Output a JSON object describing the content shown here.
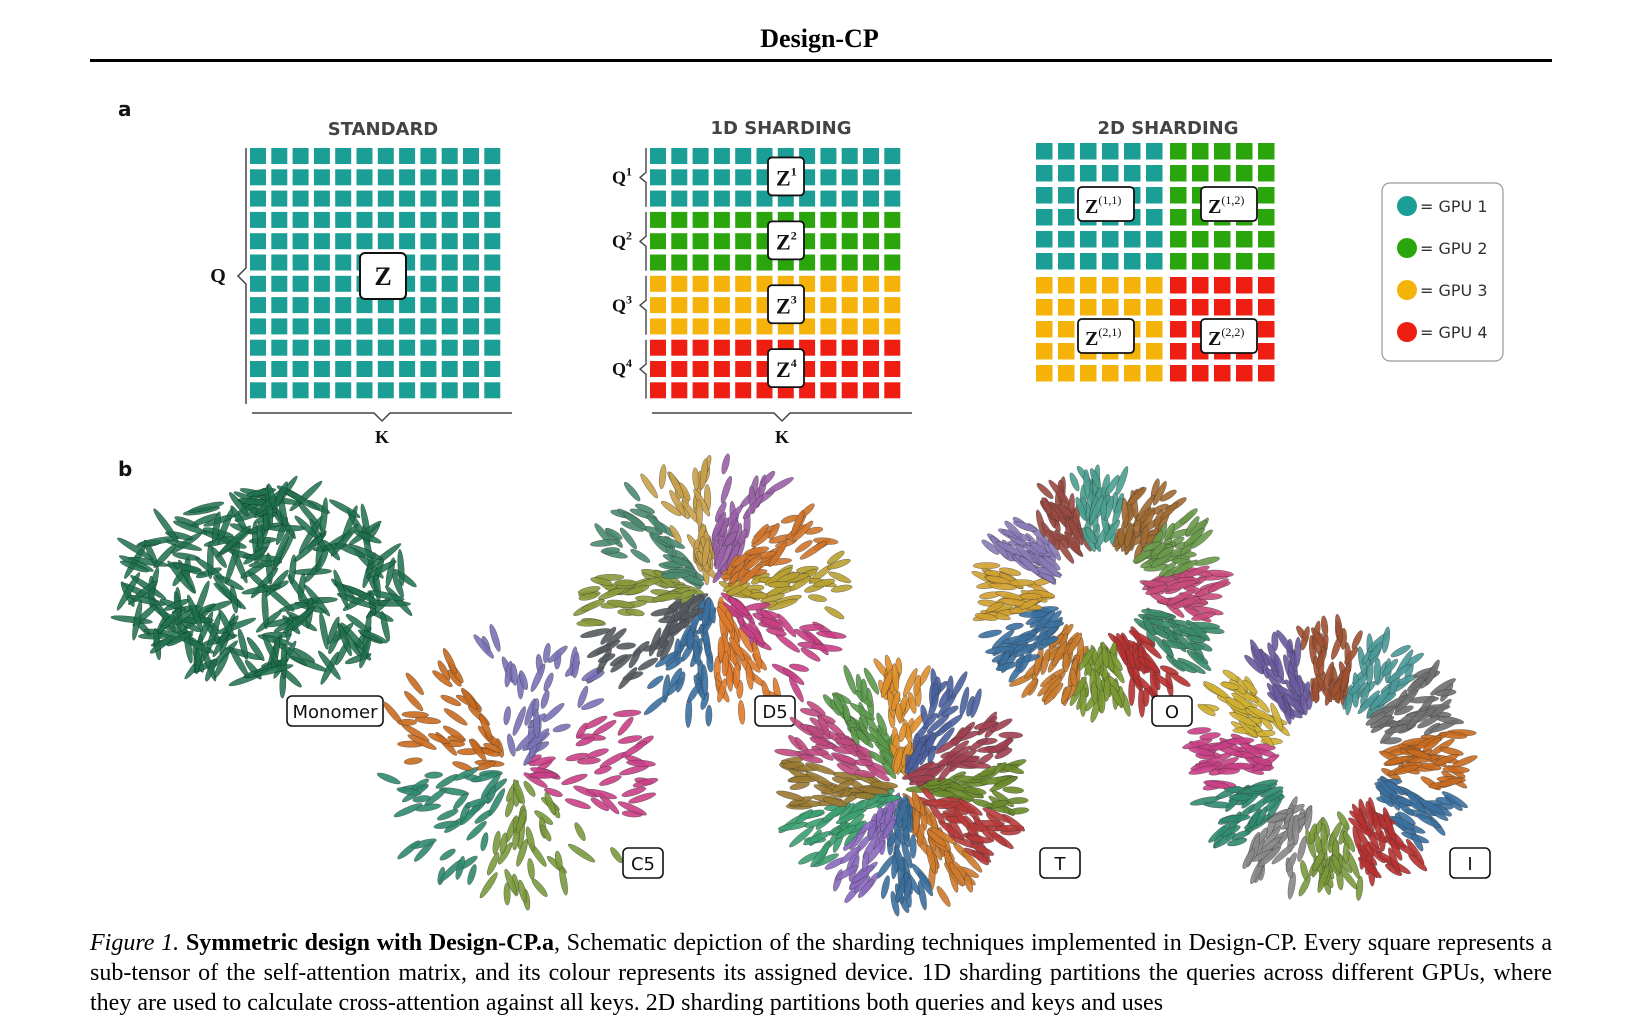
{
  "header": {
    "title": "Design-CP"
  },
  "panel_a": {
    "label": "a",
    "titles": {
      "standard": "STANDARD",
      "sharding_1d": "1D SHARDING",
      "sharding_2d": "2D SHARDING"
    },
    "standard": {
      "q_label": "Q",
      "k_label": "K",
      "z_label": "Z"
    },
    "sharding_1d": {
      "k_label": "K",
      "rows": [
        {
          "q_base": "Q",
          "q_sup": "1",
          "z_base": "Z",
          "z_sup": "1",
          "gpu": 1
        },
        {
          "q_base": "Q",
          "q_sup": "2",
          "z_base": "Z",
          "z_sup": "2",
          "gpu": 2
        },
        {
          "q_base": "Q",
          "q_sup": "3",
          "z_base": "Z",
          "z_sup": "3",
          "gpu": 3
        },
        {
          "q_base": "Q",
          "q_sup": "4",
          "z_base": "Z",
          "z_sup": "4",
          "gpu": 4
        }
      ]
    },
    "sharding_2d": {
      "blocks": [
        {
          "z_base": "Z",
          "z_sup": "(1,1)",
          "gpu": 1
        },
        {
          "z_base": "Z",
          "z_sup": "(1,2)",
          "gpu": 2
        },
        {
          "z_base": "Z",
          "z_sup": "(2,1)",
          "gpu": 3
        },
        {
          "z_base": "Z",
          "z_sup": "(2,2)",
          "gpu": 4
        }
      ]
    },
    "legend": [
      {
        "label": "= GPU 1",
        "color": "#1a9e96"
      },
      {
        "label": "= GPU 2",
        "color": "#2aa60c"
      },
      {
        "label": "= GPU 3",
        "color": "#f5b30a"
      },
      {
        "label": "= GPU 4",
        "color": "#ee1e13"
      }
    ]
  },
  "panel_b": {
    "label": "b",
    "structures": [
      {
        "label": "Monomer",
        "symmetry": "monomer",
        "colors": [
          "#1f6f4d"
        ]
      },
      {
        "label": "C5",
        "symmetry": "C5",
        "colors": [
          "#c93f86",
          "#7a9a3a",
          "#2e8a6e",
          "#c86a1e",
          "#7a72b8"
        ]
      },
      {
        "label": "D5",
        "symmetry": "D5",
        "colors": [
          "#b8a030",
          "#c93f86",
          "#e07a2a",
          "#3a6fa0",
          "#555a60",
          "#8a9a3a",
          "#4a8a70",
          "#c8a04a",
          "#9a60a8",
          "#d0742a"
        ]
      },
      {
        "label": "T",
        "symmetry": "T",
        "colors": [
          "#6a8a2a",
          "#b83a3a",
          "#d07a2a",
          "#3a70a0",
          "#8a6abf",
          "#3aa070",
          "#9a7a30",
          "#c04a80",
          "#5a9a4a",
          "#e0902a",
          "#4a60a0",
          "#a04050"
        ]
      },
      {
        "label": "O",
        "symmetry": "O",
        "colors": [
          "#c94a7a",
          "#3a8a6a",
          "#b83030",
          "#7a9a30",
          "#c97a2a",
          "#3a70a0",
          "#d0a030",
          "#8a7ab8",
          "#9a4a40",
          "#4aa090",
          "#a06a30",
          "#6a9a4a"
        ]
      },
      {
        "label": "I",
        "symmetry": "I",
        "colors": [
          "#c86a1e",
          "#3a70a0",
          "#b83030",
          "#7a9a3a",
          "#888888",
          "#2e8a6e",
          "#c93f86",
          "#d0b030",
          "#6a5aa0",
          "#a05030",
          "#4a9a9a",
          "#707070"
        ]
      }
    ]
  },
  "caption": {
    "figure_label": "Figure 1.",
    "bold_title": "Symmetric design with Design-CP.",
    "bold_a": "a",
    "body_line1": ", Schematic depiction of the sharding techniques implemented in Design-CP. Every square represents a sub-tensor of the self-attention matrix, and its colour represents its assigned device. 1D sharding partitions the queries across different GPUs, where they are used to calculate cross-attention against all keys. 2D sharding partitions both queries and keys and uses"
  }
}
